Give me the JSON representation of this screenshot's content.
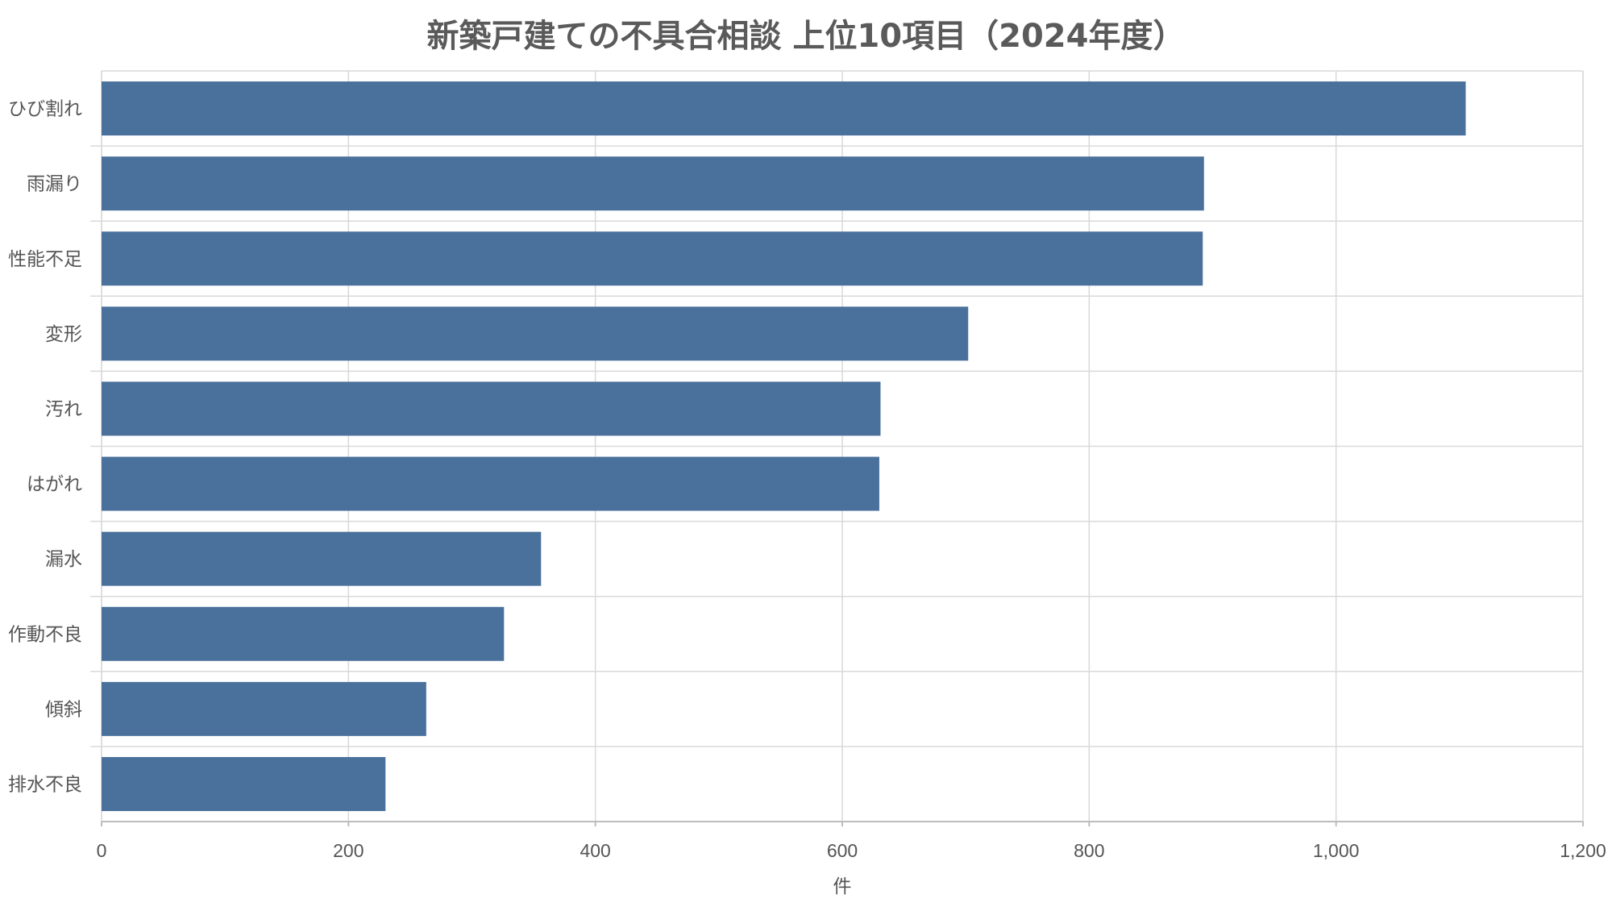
{
  "chart_data": {
    "type": "bar",
    "orientation": "horizontal",
    "title": "新築戸建ての不具合相談 上位10項目（2024年度）",
    "xlabel": "件",
    "ylabel": "",
    "categories": [
      "ひび割れ",
      "雨漏り",
      "性能不足",
      "変形",
      "汚れ",
      "はがれ",
      "漏水",
      "作動不良",
      "傾斜",
      "排水不良"
    ],
    "values": [
      1105,
      893,
      892,
      702,
      631,
      630,
      356,
      326,
      263,
      230
    ],
    "xlim": [
      0,
      1200
    ],
    "xticks": [
      0,
      200,
      400,
      600,
      800,
      1000,
      1200
    ],
    "xtick_labels": [
      "0",
      "200",
      "400",
      "600",
      "800",
      "1,000",
      "1,200"
    ],
    "grid": true,
    "colors": {
      "bar": "#4a719b",
      "grid": "#d9d9d9",
      "text": "#555555"
    }
  }
}
